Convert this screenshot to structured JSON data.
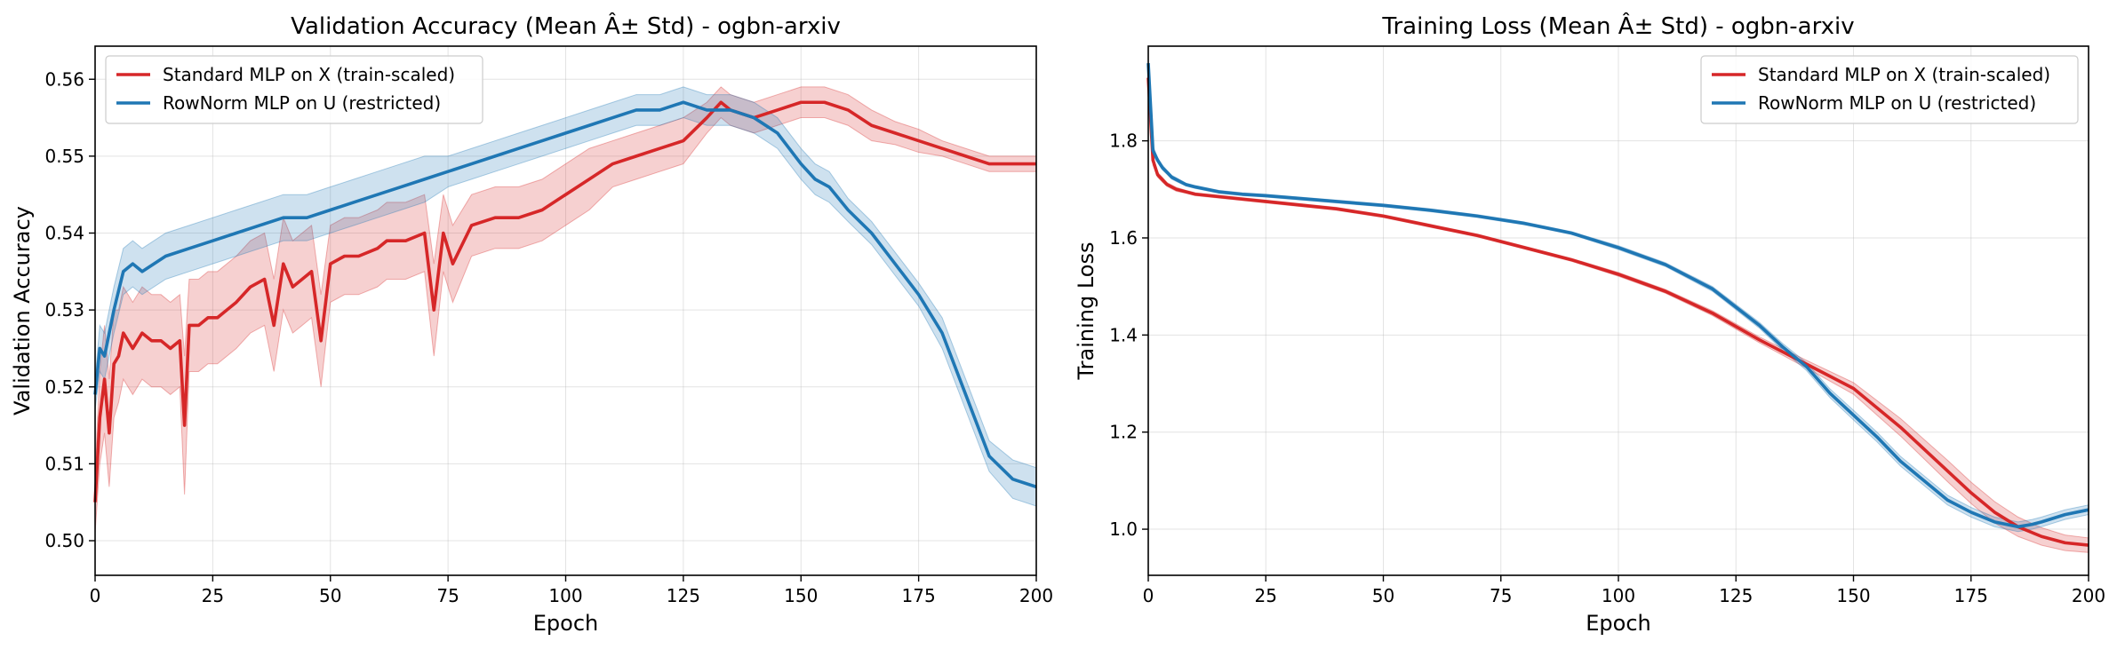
{
  "chart_data": [
    {
      "type": "line",
      "title": "Validation Accuracy (Mean Â± Std) - ogbn-arxiv",
      "xlabel": "Epoch",
      "ylabel": "Validation Accuracy",
      "xlim": [
        0,
        200
      ],
      "ylim": [
        0.4955,
        0.5643
      ],
      "xticks": [
        0,
        25,
        50,
        75,
        100,
        125,
        150,
        175,
        200
      ],
      "yticks": [
        0.5,
        0.51,
        0.52,
        0.53,
        0.54,
        0.55,
        0.56
      ],
      "ytick_labels": [
        "0.50",
        "0.51",
        "0.52",
        "0.53",
        "0.54",
        "0.55",
        "0.56"
      ],
      "grid": true,
      "legend": "upper-left",
      "series": [
        {
          "name": "Standard MLP on X (train-scaled)",
          "color": "#d62728",
          "x": [
            0,
            1,
            2,
            3,
            4,
            5,
            6,
            8,
            10,
            12,
            14,
            16,
            18,
            19,
            20,
            22,
            24,
            26,
            28,
            30,
            33,
            36,
            38,
            40,
            42,
            44,
            46,
            48,
            50,
            53,
            56,
            60,
            62,
            66,
            70,
            72,
            74,
            76,
            80,
            85,
            90,
            95,
            100,
            105,
            110,
            115,
            120,
            125,
            130,
            133,
            135,
            140,
            145,
            150,
            155,
            160,
            165,
            170,
            175,
            180,
            185,
            190,
            195,
            200
          ],
          "y": [
            0.505,
            0.516,
            0.521,
            0.514,
            0.523,
            0.524,
            0.527,
            0.525,
            0.527,
            0.526,
            0.526,
            0.525,
            0.526,
            0.515,
            0.528,
            0.528,
            0.529,
            0.529,
            0.53,
            0.531,
            0.533,
            0.534,
            0.528,
            0.536,
            0.533,
            0.534,
            0.535,
            0.526,
            0.536,
            0.537,
            0.537,
            0.538,
            0.539,
            0.539,
            0.54,
            0.53,
            0.54,
            0.536,
            0.541,
            0.542,
            0.542,
            0.543,
            0.545,
            0.547,
            0.549,
            0.55,
            0.551,
            0.552,
            0.555,
            0.557,
            0.556,
            0.555,
            0.556,
            0.557,
            0.557,
            0.556,
            0.554,
            0.553,
            0.552,
            0.551,
            0.55,
            0.549,
            0.549,
            0.549
          ],
          "std": [
            0.004,
            0.006,
            0.007,
            0.007,
            0.007,
            0.006,
            0.006,
            0.006,
            0.006,
            0.006,
            0.006,
            0.006,
            0.006,
            0.009,
            0.006,
            0.006,
            0.006,
            0.006,
            0.006,
            0.006,
            0.006,
            0.006,
            0.006,
            0.006,
            0.006,
            0.006,
            0.006,
            0.006,
            0.005,
            0.005,
            0.005,
            0.005,
            0.005,
            0.005,
            0.005,
            0.006,
            0.005,
            0.005,
            0.004,
            0.004,
            0.004,
            0.004,
            0.004,
            0.004,
            0.003,
            0.003,
            0.003,
            0.003,
            0.002,
            0.002,
            0.002,
            0.002,
            0.002,
            0.002,
            0.002,
            0.002,
            0.002,
            0.0015,
            0.0015,
            0.001,
            0.001,
            0.001,
            0.001,
            0.001
          ]
        },
        {
          "name": "RowNorm MLP on U (restricted)",
          "color": "#1f77b4",
          "x": [
            0,
            1,
            2,
            4,
            6,
            8,
            10,
            15,
            20,
            25,
            30,
            35,
            40,
            45,
            50,
            55,
            60,
            65,
            70,
            75,
            80,
            85,
            90,
            95,
            100,
            105,
            110,
            115,
            120,
            125,
            130,
            135,
            140,
            145,
            150,
            153,
            156,
            160,
            165,
            170,
            175,
            180,
            185,
            190,
            195,
            200
          ],
          "y": [
            0.519,
            0.525,
            0.524,
            0.53,
            0.535,
            0.536,
            0.535,
            0.537,
            0.538,
            0.539,
            0.54,
            0.541,
            0.542,
            0.542,
            0.543,
            0.544,
            0.545,
            0.546,
            0.547,
            0.548,
            0.549,
            0.55,
            0.551,
            0.552,
            0.553,
            0.554,
            0.555,
            0.556,
            0.556,
            0.557,
            0.556,
            0.556,
            0.555,
            0.553,
            0.549,
            0.547,
            0.546,
            0.543,
            0.54,
            0.536,
            0.532,
            0.527,
            0.519,
            0.511,
            0.508,
            0.507
          ],
          "std": [
            0.002,
            0.003,
            0.003,
            0.003,
            0.003,
            0.003,
            0.003,
            0.003,
            0.003,
            0.003,
            0.003,
            0.003,
            0.003,
            0.003,
            0.003,
            0.003,
            0.003,
            0.003,
            0.003,
            0.002,
            0.002,
            0.002,
            0.002,
            0.002,
            0.002,
            0.002,
            0.002,
            0.002,
            0.002,
            0.002,
            0.002,
            0.002,
            0.002,
            0.002,
            0.002,
            0.002,
            0.002,
            0.0015,
            0.0015,
            0.0015,
            0.0015,
            0.002,
            0.002,
            0.002,
            0.0025,
            0.0025
          ]
        }
      ]
    },
    {
      "type": "line",
      "title": "Training Loss (Mean Â± Std) - ogbn-arxiv",
      "xlabel": "Epoch",
      "ylabel": "Training Loss",
      "xlim": [
        0,
        200
      ],
      "ylim": [
        0.905,
        1.995
      ],
      "xticks": [
        0,
        25,
        50,
        75,
        100,
        125,
        150,
        175,
        200
      ],
      "yticks": [
        1.0,
        1.2,
        1.4,
        1.6,
        1.8
      ],
      "ytick_labels": [
        "1.0",
        "1.2",
        "1.4",
        "1.6",
        "1.8"
      ],
      "grid": true,
      "legend": "upper-right",
      "series": [
        {
          "name": "Standard MLP on X (train-scaled)",
          "color": "#d62728",
          "x": [
            0,
            1,
            2,
            3,
            4,
            5,
            6,
            8,
            10,
            15,
            20,
            25,
            30,
            40,
            50,
            60,
            70,
            80,
            90,
            100,
            110,
            120,
            130,
            140,
            150,
            160,
            170,
            175,
            180,
            185,
            190,
            195,
            200
          ],
          "y": [
            1.93,
            1.76,
            1.73,
            1.72,
            1.71,
            1.705,
            1.7,
            1.695,
            1.69,
            1.685,
            1.68,
            1.675,
            1.67,
            1.66,
            1.645,
            1.625,
            1.605,
            1.58,
            1.555,
            1.525,
            1.49,
            1.445,
            1.39,
            1.34,
            1.29,
            1.21,
            1.12,
            1.075,
            1.035,
            1.005,
            0.985,
            0.972,
            0.967
          ],
          "std": [
            0.01,
            0.01,
            0.005,
            0.005,
            0.004,
            0.004,
            0.004,
            0.003,
            0.003,
            0.003,
            0.003,
            0.003,
            0.003,
            0.003,
            0.003,
            0.003,
            0.003,
            0.003,
            0.003,
            0.004,
            0.004,
            0.005,
            0.006,
            0.008,
            0.012,
            0.018,
            0.022,
            0.022,
            0.022,
            0.02,
            0.018,
            0.016,
            0.015
          ]
        },
        {
          "name": "RowNorm MLP on U (restricted)",
          "color": "#1f77b4",
          "x": [
            0,
            1,
            2,
            3,
            4,
            5,
            6,
            8,
            10,
            15,
            20,
            25,
            30,
            40,
            50,
            60,
            70,
            80,
            90,
            100,
            110,
            120,
            130,
            135,
            140,
            145,
            150,
            155,
            160,
            165,
            170,
            175,
            180,
            185,
            188,
            190,
            195,
            200
          ],
          "y": [
            1.96,
            1.78,
            1.76,
            1.745,
            1.735,
            1.725,
            1.72,
            1.71,
            1.705,
            1.695,
            1.69,
            1.687,
            1.683,
            1.675,
            1.667,
            1.657,
            1.645,
            1.63,
            1.61,
            1.58,
            1.545,
            1.495,
            1.42,
            1.375,
            1.335,
            1.28,
            1.235,
            1.19,
            1.14,
            1.1,
            1.06,
            1.035,
            1.015,
            1.005,
            1.01,
            1.015,
            1.03,
            1.04
          ],
          "std": [
            0.01,
            0.01,
            0.005,
            0.005,
            0.004,
            0.004,
            0.004,
            0.003,
            0.003,
            0.003,
            0.003,
            0.003,
            0.003,
            0.003,
            0.003,
            0.003,
            0.003,
            0.003,
            0.003,
            0.004,
            0.004,
            0.005,
            0.006,
            0.007,
            0.008,
            0.009,
            0.01,
            0.01,
            0.01,
            0.01,
            0.01,
            0.01,
            0.01,
            0.01,
            0.01,
            0.01,
            0.01,
            0.01
          ]
        }
      ]
    }
  ]
}
